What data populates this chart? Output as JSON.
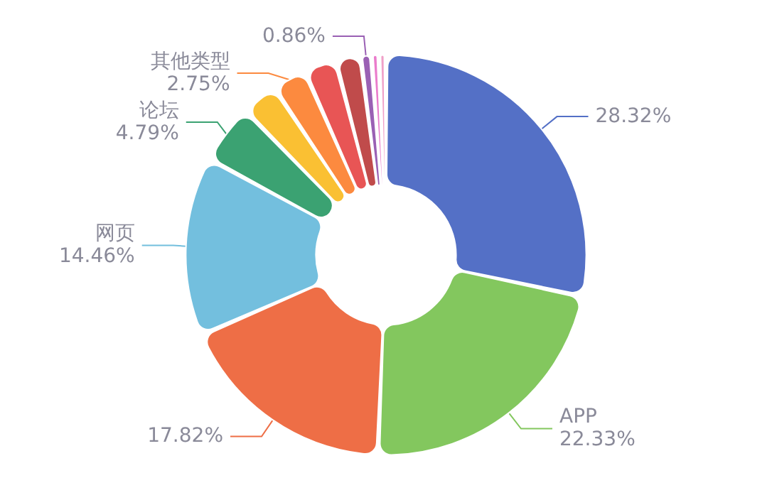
{
  "chart_data": {
    "type": "donut",
    "categories": [
      null,
      "APP",
      null,
      "网页",
      "论坛",
      null,
      "其他类型",
      null,
      null,
      null,
      null,
      null
    ],
    "values": [
      28.32,
      22.33,
      17.82,
      14.46,
      4.79,
      2.9,
      2.75,
      2.6,
      2.0,
      0.86,
      0.6,
      0.57
    ],
    "colors": [
      "#5470c6",
      "#83c75e",
      "#ee6e46",
      "#73bfde",
      "#3ba272",
      "#fac033",
      "#fc8a3f",
      "#e85555",
      "#c04b4b",
      "#9a60b4",
      "#ea7ccc",
      "#f0a0c8"
    ],
    "value_labels": [
      "28.32%",
      "22.33%",
      "17.82%",
      "14.46%",
      "4.79%",
      null,
      "2.75%",
      null,
      null,
      "0.86%",
      null,
      null
    ]
  }
}
